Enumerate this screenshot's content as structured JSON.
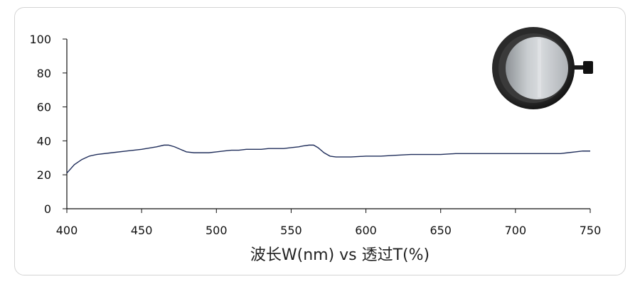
{
  "chart_data": {
    "type": "line",
    "xlabel": "波长W(nm) vs 透过T(%)",
    "ylabel": "",
    "xlim": [
      400,
      750
    ],
    "ylim": [
      0,
      100
    ],
    "xticks": [
      400,
      450,
      500,
      550,
      600,
      650,
      700,
      750
    ],
    "yticks": [
      0,
      20,
      40,
      60,
      80,
      100
    ],
    "grid": false,
    "line_color": "#1f2d5a",
    "series": [
      {
        "x": [
          400,
          405,
          410,
          415,
          420,
          430,
          440,
          450,
          460,
          465,
          468,
          472,
          476,
          480,
          485,
          490,
          495,
          500,
          505,
          510,
          515,
          520,
          525,
          530,
          535,
          540,
          545,
          550,
          555,
          558,
          562,
          565,
          568,
          572,
          576,
          580,
          590,
          600,
          610,
          620,
          630,
          640,
          650,
          660,
          670,
          680,
          690,
          700,
          710,
          720,
          730,
          735,
          740,
          745,
          750
        ],
        "y": [
          21,
          26,
          29,
          31,
          32,
          33,
          34,
          35,
          36.5,
          37.5,
          37.5,
          36.5,
          35,
          33.5,
          33,
          33,
          33,
          33.5,
          34,
          34.5,
          34.5,
          35,
          35,
          35,
          35.5,
          35.5,
          35.5,
          36,
          36.5,
          37,
          37.5,
          37.5,
          36,
          33,
          31,
          30.5,
          30.5,
          31,
          31,
          31.5,
          32,
          32,
          32,
          32.5,
          32.5,
          32.5,
          32.5,
          32.5,
          32.5,
          32.5,
          32.5,
          33,
          33.5,
          34,
          34
        ]
      }
    ]
  },
  "filter_image": {
    "icon": "round-filter-lens-icon",
    "rim_color": "#1a1a1a",
    "glass_color": "#b8bcc0"
  }
}
